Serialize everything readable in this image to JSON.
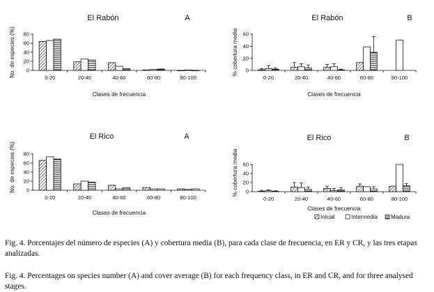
{
  "chart_data": [
    {
      "type": "bar",
      "id": "p1",
      "site": "El Rabón",
      "panel": "A",
      "ylabel": "No. de especies (%)",
      "xlabel": "Clases de frecuencia",
      "categories": [
        "0-20",
        "20-40",
        "40-60",
        "60-80",
        "80-100"
      ],
      "ylim": [
        0,
        80
      ],
      "yticks": [
        0,
        20,
        40,
        60,
        80
      ],
      "grid": false,
      "series": [
        {
          "name": "Inicial",
          "values": [
            64,
            19,
            17,
            1,
            0
          ]
        },
        {
          "name": "Intermedia",
          "values": [
            66,
            25,
            9,
            2,
            1
          ]
        },
        {
          "name": "Madura",
          "values": [
            69,
            23,
            4,
            3,
            0
          ]
        }
      ]
    },
    {
      "type": "bar",
      "id": "p2",
      "site": "El Rabón",
      "panel": "B",
      "ylabel": "% cobertura media",
      "xlabel": "Clases de frecuencia",
      "categories": [
        "0-20",
        "20-40",
        "40-60",
        "60-80",
        "80-100"
      ],
      "ylim": [
        0,
        60
      ],
      "yticks": [
        0,
        20,
        40,
        60
      ],
      "grid": false,
      "series": [
        {
          "name": "Inicial",
          "values": [
            1,
            5,
            5,
            13,
            null
          ],
          "errors": [
            2,
            8,
            5,
            0,
            null
          ]
        },
        {
          "name": "Intermedia",
          "values": [
            3,
            6,
            6,
            39,
            50
          ],
          "errors": [
            5,
            5,
            5,
            0,
            0
          ]
        },
        {
          "name": "Madura",
          "values": [
            2,
            4,
            1,
            30,
            null
          ],
          "errors": [
            2,
            5,
            1,
            26,
            null
          ]
        }
      ]
    },
    {
      "type": "bar",
      "id": "p3",
      "site": "El Rico",
      "panel": "A",
      "ylabel": "No. de especies (%)",
      "xlabel": "Clases de frecuencia",
      "categories": [
        "0-20",
        "20-40",
        "40-60",
        "60-80",
        "80-100"
      ],
      "ylim": [
        0,
        80
      ],
      "yticks": [
        0,
        20,
        40,
        60,
        80
      ],
      "grid": false,
      "series": [
        {
          "name": "Inicial",
          "values": [
            66,
            14,
            11,
            6,
            3
          ]
        },
        {
          "name": "Intermedia",
          "values": [
            74,
            20,
            3,
            3,
            2
          ]
        },
        {
          "name": "Madura",
          "values": [
            69,
            18,
            6,
            3,
            3
          ]
        }
      ]
    },
    {
      "type": "bar",
      "id": "p4",
      "site": "El Rico",
      "panel": "B",
      "ylabel": "% cobertura media",
      "xlabel": "Clases de frecuencia",
      "categories": [
        "0-20",
        "20-40",
        "40-60",
        "60-80",
        "80-100"
      ],
      "ylim": [
        0,
        60
      ],
      "yticks": [
        0,
        20,
        40,
        60
      ],
      "grid": false,
      "legend": "bottom",
      "series": [
        {
          "name": "Inicial",
          "values": [
            1,
            10,
            7,
            12,
            12
          ],
          "errors": [
            2,
            10,
            5,
            5,
            0
          ]
        },
        {
          "name": "Intermedia",
          "values": [
            2,
            9,
            2,
            11,
            60
          ],
          "errors": [
            2,
            10,
            5,
            0,
            0
          ]
        },
        {
          "name": "Madura",
          "values": [
            1,
            5,
            4,
            6,
            13
          ],
          "errors": [
            1,
            5,
            5,
            5,
            5
          ]
        }
      ]
    }
  ],
  "caption_es": "Fig. 4. Porcentajes del número de especies (A) y cobertura media (B), para cada clase de frecuencia, en ER y CR, y las tres etapas analizadas.",
  "caption_en": "Fig. 4. Percentages on species number (A) and cover average (B) for each frequency class, in ER and CR, and for three analysed stages.",
  "colors": {
    "ink": "#111111",
    "bar_fill": "#ffffff"
  }
}
